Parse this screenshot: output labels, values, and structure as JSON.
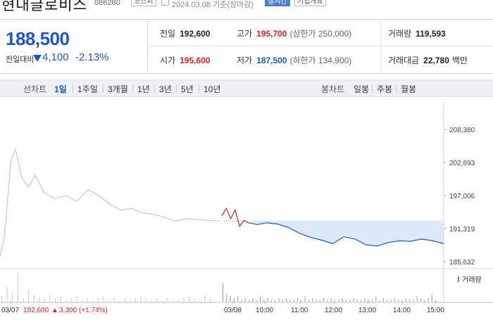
{
  "header": {
    "name": "현대글로비스",
    "code": "086280",
    "market_tag": "코스피",
    "date_text": "2024.03.08  기준(장마감)",
    "live_tag": "실시간",
    "info_tag": "기업개요"
  },
  "quote": {
    "price": "188,500",
    "change_label": "전일대비",
    "change_value": "4,100",
    "change_pct": "-2.13%",
    "prev_close_label": "전일",
    "prev_close": "192,600",
    "high_label": "고가",
    "high": "195,700",
    "upper_limit": "(상한가 250,000)",
    "volume_label": "거래량",
    "volume": "119,593",
    "open_label": "시가",
    "open": "195,600",
    "low_label": "저가",
    "low": "187,500",
    "lower_limit": "(하한가 134,900)",
    "value_label": "거래대금",
    "value": "22,780",
    "value_unit": "백만"
  },
  "tabs": {
    "line_title": "선차트",
    "periods": [
      "1일",
      "1주일",
      "3개월",
      "1년",
      "3년",
      "5년",
      "10년"
    ],
    "candle_title": "봉차트",
    "candles": [
      "일봉",
      "주봉",
      "월봉"
    ]
  },
  "colors": {
    "up": "#e02020",
    "down": "#1e55cf",
    "prev_line": "#bdbdbd"
  },
  "chart_data": {
    "type": "line",
    "ylim": [
      185000,
      209500
    ],
    "y_ticks": [
      "208,380",
      "202,693",
      "197,006",
      "191,319",
      "185,632"
    ],
    "x_ticks": [
      "03/07",
      "03/08",
      "10:00",
      "11:00",
      "12:00",
      "13:00",
      "14:00",
      "15:00"
    ],
    "volume_label": "거래량",
    "prev_close_ref": 192600,
    "bottom_info": {
      "date": "03/07",
      "close": "192,600",
      "change": "3,300",
      "pct": "(+1.74%)"
    },
    "series": [
      {
        "name": "03/07",
        "t": [
          0,
          0.02,
          0.05,
          0.07,
          0.1,
          0.13,
          0.16,
          0.2,
          0.25,
          0.3,
          0.35,
          0.4,
          0.45,
          0.5,
          0.55,
          0.6,
          0.65,
          0.7,
          0.75,
          0.8,
          0.85,
          0.9,
          0.95,
          1.0
        ],
        "y": [
          186500,
          190000,
          203000,
          205000,
          200000,
          198500,
          200500,
          197500,
          196500,
          197000,
          196000,
          198000,
          197000,
          195500,
          194500,
          194800,
          194000,
          193800,
          193200,
          192600,
          193000,
          192900,
          192700,
          192600
        ]
      },
      {
        "name": "03/08",
        "t": [
          0,
          0.02,
          0.04,
          0.06,
          0.08,
          0.1,
          0.12,
          0.16,
          0.2,
          0.25,
          0.3,
          0.35,
          0.4,
          0.45,
          0.5,
          0.55,
          0.6,
          0.65,
          0.7,
          0.75,
          0.8,
          0.85,
          0.9,
          0.95,
          1.0
        ],
        "y": [
          193500,
          194800,
          193000,
          194500,
          191700,
          192700,
          192300,
          192000,
          192300,
          192100,
          191500,
          190500,
          189800,
          189300,
          188700,
          189900,
          189500,
          188500,
          188300,
          188900,
          189200,
          189100,
          189500,
          189200,
          188700
        ]
      }
    ],
    "volume_prev": [
      3,
      8,
      5,
      16,
      2,
      6,
      4,
      3,
      2,
      4,
      2,
      3,
      1,
      2,
      3,
      1,
      2,
      1,
      2,
      3,
      1,
      2,
      1,
      2,
      1,
      2,
      3,
      2,
      1,
      2,
      1,
      2,
      1,
      1,
      2,
      3,
      2,
      1,
      4,
      2
    ],
    "volume_today": [
      10,
      4,
      3,
      2,
      3,
      1,
      2,
      1,
      2,
      1,
      3,
      1,
      2,
      1,
      1,
      2,
      1,
      2,
      1,
      1,
      2,
      1,
      3,
      1,
      2,
      1,
      1,
      2,
      1,
      2,
      1,
      1,
      2,
      1,
      1,
      2,
      1,
      1,
      2,
      1,
      1,
      3,
      1,
      2,
      1,
      1,
      2,
      1,
      1,
      2,
      1,
      1,
      3,
      2,
      1,
      2,
      4,
      1
    ]
  }
}
